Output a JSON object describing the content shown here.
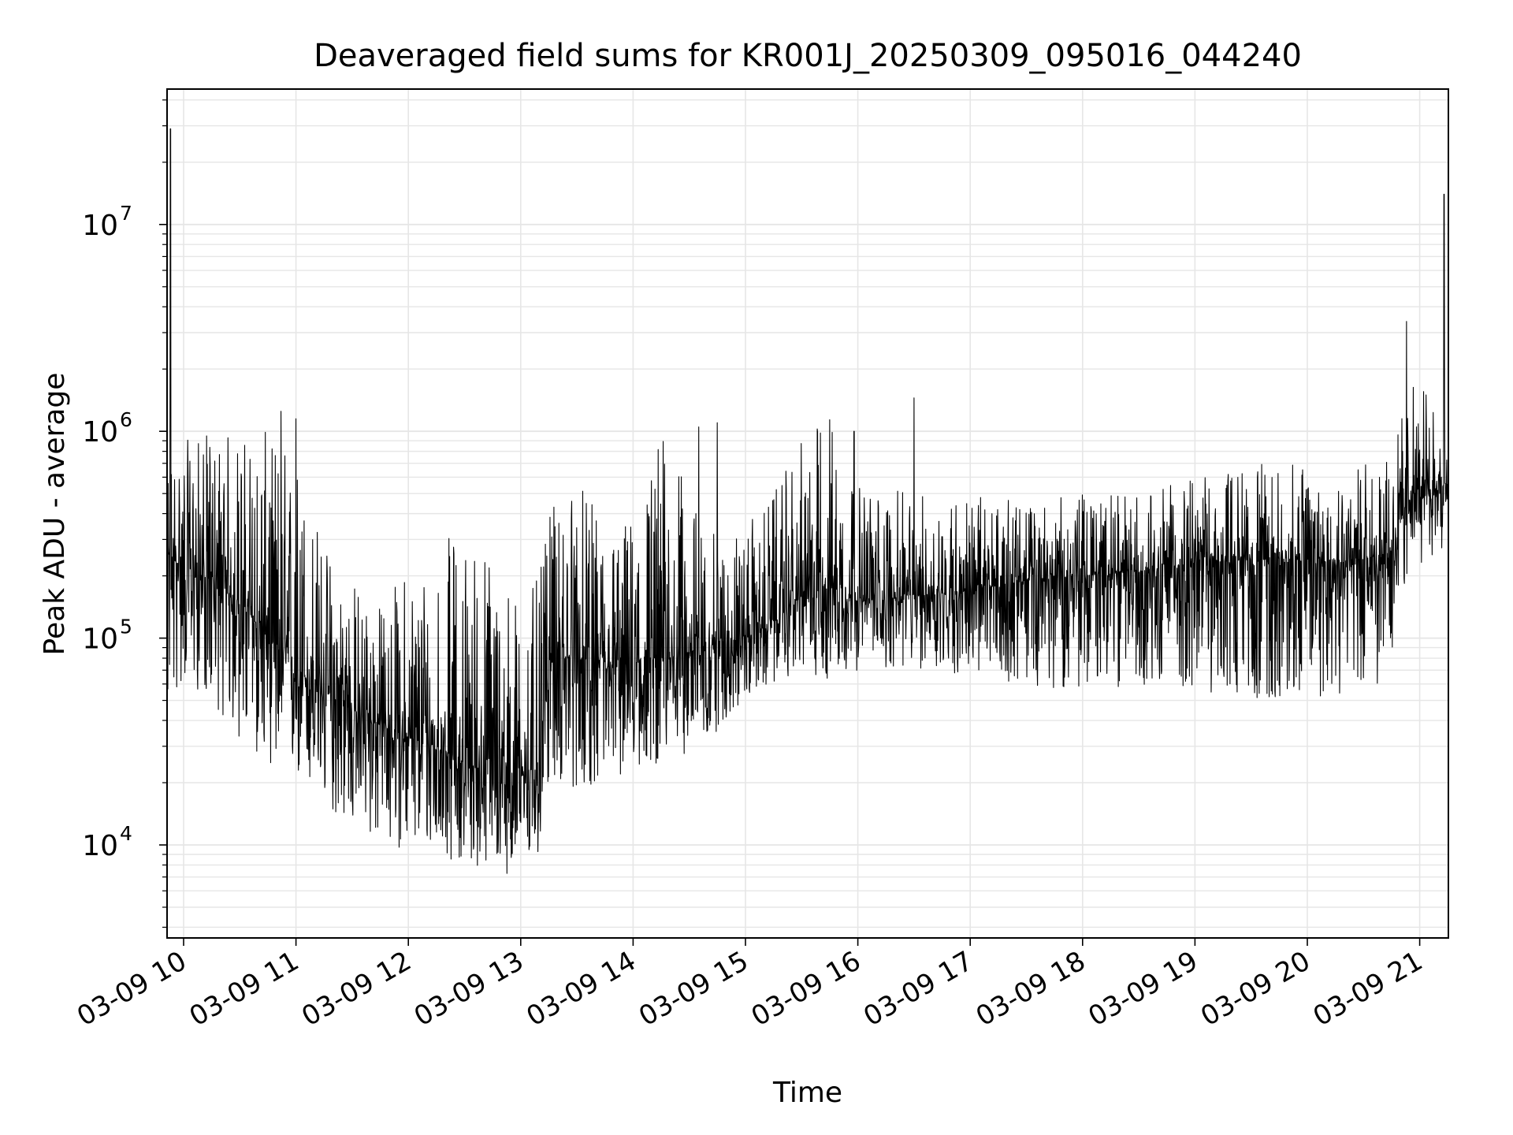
{
  "chart_data": {
    "type": "line",
    "title": "Deaveraged field sums for KR001J_20250309_095016_044240",
    "xlabel": "Time",
    "ylabel": "Peak ADU - average",
    "y_scale": "log",
    "ylim": [
      3500,
      45000000
    ],
    "xlim": [
      "2025-03-09 09:51",
      "2025-03-09 21:15"
    ],
    "grid": true,
    "line_color": "#000000",
    "grid_color": "#e6e6e6",
    "x_ticks": [
      "03-09 10",
      "03-09 11",
      "03-09 12",
      "03-09 13",
      "03-09 14",
      "03-09 15",
      "03-09 16",
      "03-09 17",
      "03-09 18",
      "03-09 19",
      "03-09 20",
      "03-09 21"
    ],
    "y_ticks": [
      {
        "base": "10",
        "exp": "4"
      },
      {
        "base": "10",
        "exp": "5"
      },
      {
        "base": "10",
        "exp": "6"
      },
      {
        "base": "10",
        "exp": "7"
      }
    ],
    "series_envelope": {
      "time": [
        "09:51",
        "10:00",
        "10:15",
        "10:30",
        "10:45",
        "11:00",
        "11:15",
        "11:30",
        "11:45",
        "12:00",
        "12:15",
        "12:30",
        "12:45",
        "13:00",
        "13:10",
        "13:15",
        "13:30",
        "13:45",
        "14:00",
        "14:15",
        "14:30",
        "14:45",
        "15:00",
        "15:15",
        "15:30",
        "15:45",
        "16:00",
        "16:30",
        "17:00",
        "17:30",
        "18:00",
        "18:30",
        "19:00",
        "19:30",
        "20:00",
        "20:30",
        "20:45",
        "20:55",
        "21:00",
        "21:10",
        "21:15"
      ],
      "median": [
        250000,
        220000,
        190000,
        150000,
        100000,
        70000,
        55000,
        45000,
        38000,
        33000,
        30000,
        25000,
        22000,
        22000,
        24000,
        80000,
        80000,
        70000,
        75000,
        80000,
        85000,
        95000,
        100000,
        120000,
        160000,
        190000,
        150000,
        160000,
        170000,
        190000,
        200000,
        210000,
        230000,
        240000,
        240000,
        240000,
        260000,
        520000,
        480000,
        520000,
        560000
      ],
      "low": [
        40000,
        60000,
        50000,
        30000,
        25000,
        20000,
        15000,
        12000,
        10000,
        9500,
        9000,
        8000,
        7500,
        7000,
        8500,
        20000,
        18000,
        20000,
        22000,
        25000,
        28000,
        35000,
        50000,
        60000,
        70000,
        60000,
        70000,
        70000,
        65000,
        60000,
        55000,
        60000,
        55000,
        50000,
        50000,
        55000,
        60000,
        250000,
        220000,
        250000,
        300000
      ],
      "high": [
        850000,
        900000,
        1000000,
        1000000,
        1000000,
        850000,
        300000,
        200000,
        150000,
        230000,
        300000,
        350000,
        300000,
        150000,
        200000,
        400000,
        600000,
        350000,
        400000,
        1100000,
        500000,
        300000,
        350000,
        500000,
        900000,
        1400000,
        550000,
        500000,
        500000,
        450000,
        500000,
        500000,
        600000,
        700000,
        700000,
        700000,
        800000,
        1800000,
        1500000,
        2000000,
        1300000
      ]
    },
    "spikes": [
      {
        "time": "09:53",
        "value": 29000000
      },
      {
        "time": "10:52",
        "value": 1250000
      },
      {
        "time": "11:00",
        "value": 1150000
      },
      {
        "time": "13:27",
        "value": 380000
      },
      {
        "time": "14:35",
        "value": 1050000
      },
      {
        "time": "14:45",
        "value": 1100000
      },
      {
        "time": "15:58",
        "value": 1000000
      },
      {
        "time": "16:30",
        "value": 1450000
      },
      {
        "time": "20:53",
        "value": 3400000
      },
      {
        "time": "21:13",
        "value": 14000000
      }
    ]
  }
}
